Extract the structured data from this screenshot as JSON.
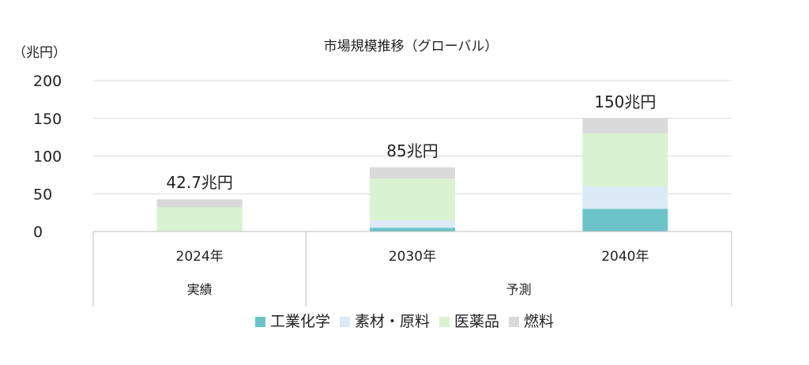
{
  "chart_data": {
    "type": "bar",
    "stacked": true,
    "title": "市場規模推移（グローバル）",
    "y_unit": "（兆円）",
    "ylim": [
      0,
      200
    ],
    "yticks": [
      0,
      50,
      100,
      150,
      200
    ],
    "grid": true,
    "legend_position": "bottom",
    "categories": [
      "2024年",
      "2030年",
      "2040年"
    ],
    "groups": [
      {
        "label": "実績",
        "categories": [
          "2024年"
        ]
      },
      {
        "label": "予測",
        "categories": [
          "2030年",
          "2040年"
        ]
      }
    ],
    "totals": [
      "42.7兆円",
      "85兆円",
      "150兆円"
    ],
    "series": [
      {
        "name": "工業化学",
        "color": "#6cc4c9",
        "values": [
          0,
          5,
          30
        ]
      },
      {
        "name": "素材・原料",
        "color": "#dce9f6",
        "values": [
          0,
          10,
          30
        ]
      },
      {
        "name": "医薬品",
        "color": "#d9f2d0",
        "values": [
          32,
          55,
          70
        ]
      },
      {
        "name": "燃料",
        "color": "#d9d9d9",
        "values": [
          10.7,
          15,
          20
        ]
      }
    ]
  }
}
